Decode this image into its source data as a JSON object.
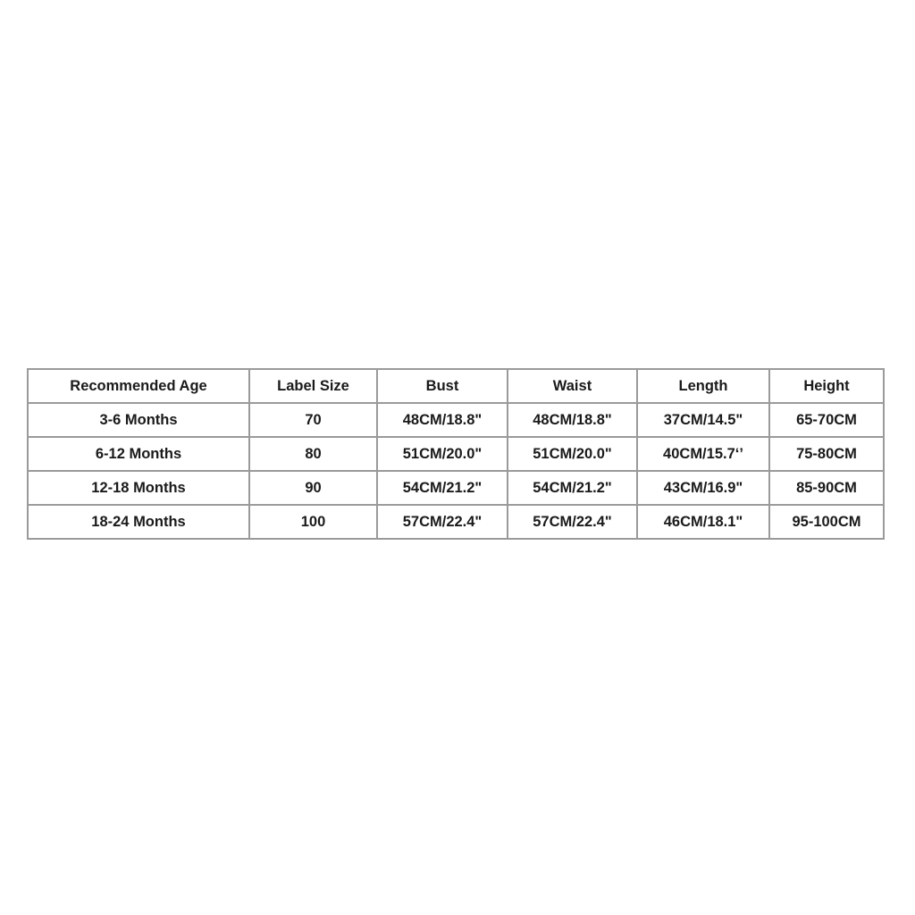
{
  "size_chart": {
    "headers": [
      "Recommended Age",
      "Label Size",
      "Bust",
      "Waist",
      "Length",
      "Height"
    ],
    "rows": [
      [
        "3-6 Months",
        "70",
        "48CM/18.8\"",
        "48CM/18.8\"",
        "37CM/14.5\"",
        "65-70CM"
      ],
      [
        "6-12 Months",
        "80",
        "51CM/20.0\"",
        "51CM/20.0\"",
        "40CM/15.7‘’",
        "75-80CM"
      ],
      [
        "12-18 Months",
        "90",
        "54CM/21.2\"",
        "54CM/21.2\"",
        "43CM/16.9\"",
        "85-90CM"
      ],
      [
        "18-24 Months",
        "100",
        "57CM/22.4\"",
        "57CM/22.4\"",
        "46CM/18.1\"",
        "95-100CM"
      ]
    ]
  }
}
